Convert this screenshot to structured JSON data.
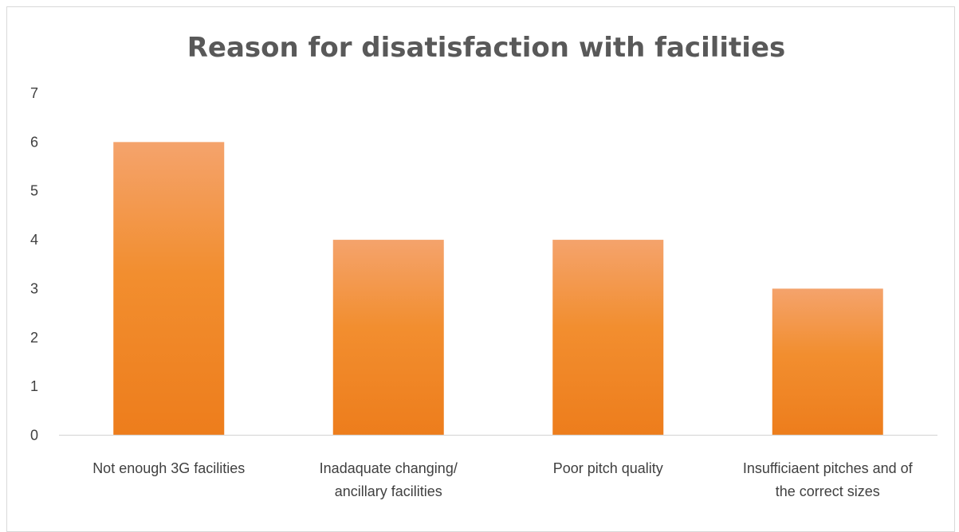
{
  "chart_data": {
    "type": "bar",
    "title": "Reason for disatisfaction with facilities",
    "xlabel": "",
    "ylabel": "",
    "categories": [
      [
        "Not enough 3G facilities"
      ],
      [
        "Inadaquate changing/",
        "ancillary facilities"
      ],
      [
        "Poor pitch quality"
      ],
      [
        "Insufficiaent pitches and of",
        "the correct sizes"
      ]
    ],
    "values": [
      6,
      4,
      4,
      3
    ],
    "ylim": [
      0,
      7
    ],
    "yticks": [
      0,
      1,
      2,
      3,
      4,
      5,
      6,
      7
    ],
    "grid": false,
    "legend": "none",
    "colors": {
      "bar_top": "#f4a36c",
      "bar_mid": "#f28e2f",
      "bar_bottom": "#ed7d1c",
      "axis": "#d9d9d9",
      "title": "#595959",
      "text": "#404040"
    }
  }
}
